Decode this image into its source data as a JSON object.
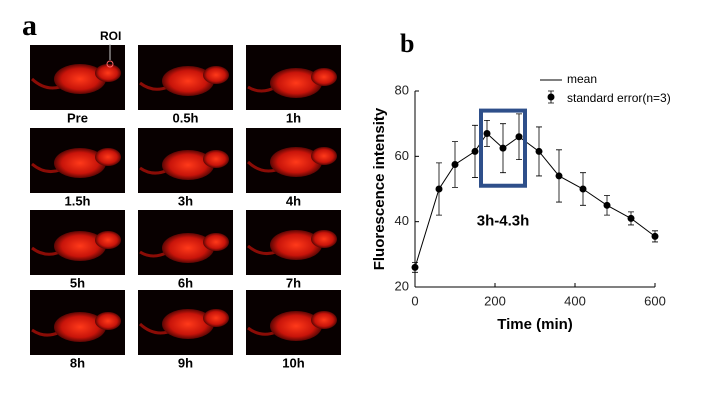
{
  "panel_a": {
    "label": "a",
    "roi": "ROI",
    "images": [
      "Pre",
      "0.5h",
      "1h",
      "1.5h",
      "3h",
      "4h",
      "5h",
      "6h",
      "7h",
      "8h",
      "9h",
      "10h"
    ]
  },
  "chart_data": {
    "type": "line",
    "panel_label": "b",
    "x_label": "Time (min)",
    "y_label": "Fluorescence intensity",
    "x": [
      0,
      60,
      100,
      150,
      180,
      220,
      260,
      310,
      360,
      420,
      480,
      540,
      600
    ],
    "series": [
      {
        "name": "mean",
        "error_name": "standard error(n=3)",
        "color": "#000000",
        "values": [
          26,
          50,
          57.5,
          61.5,
          67,
          62.5,
          66,
          61.5,
          54,
          50,
          45,
          41,
          35.5
        ],
        "errors": [
          1.5,
          8,
          7,
          8,
          4,
          7.5,
          7,
          7.5,
          8,
          5,
          3,
          2,
          1.7
        ]
      }
    ],
    "xlim": [
      0,
      600
    ],
    "xticks": [
      0,
      200,
      400,
      600
    ],
    "ylim": [
      20,
      80
    ],
    "yticks": [
      20,
      40,
      60,
      80
    ],
    "highlight": {
      "x": [
        165,
        275
      ],
      "y": [
        51,
        74
      ],
      "label": "3h-4.3h",
      "color": "#2e4f8a"
    }
  }
}
